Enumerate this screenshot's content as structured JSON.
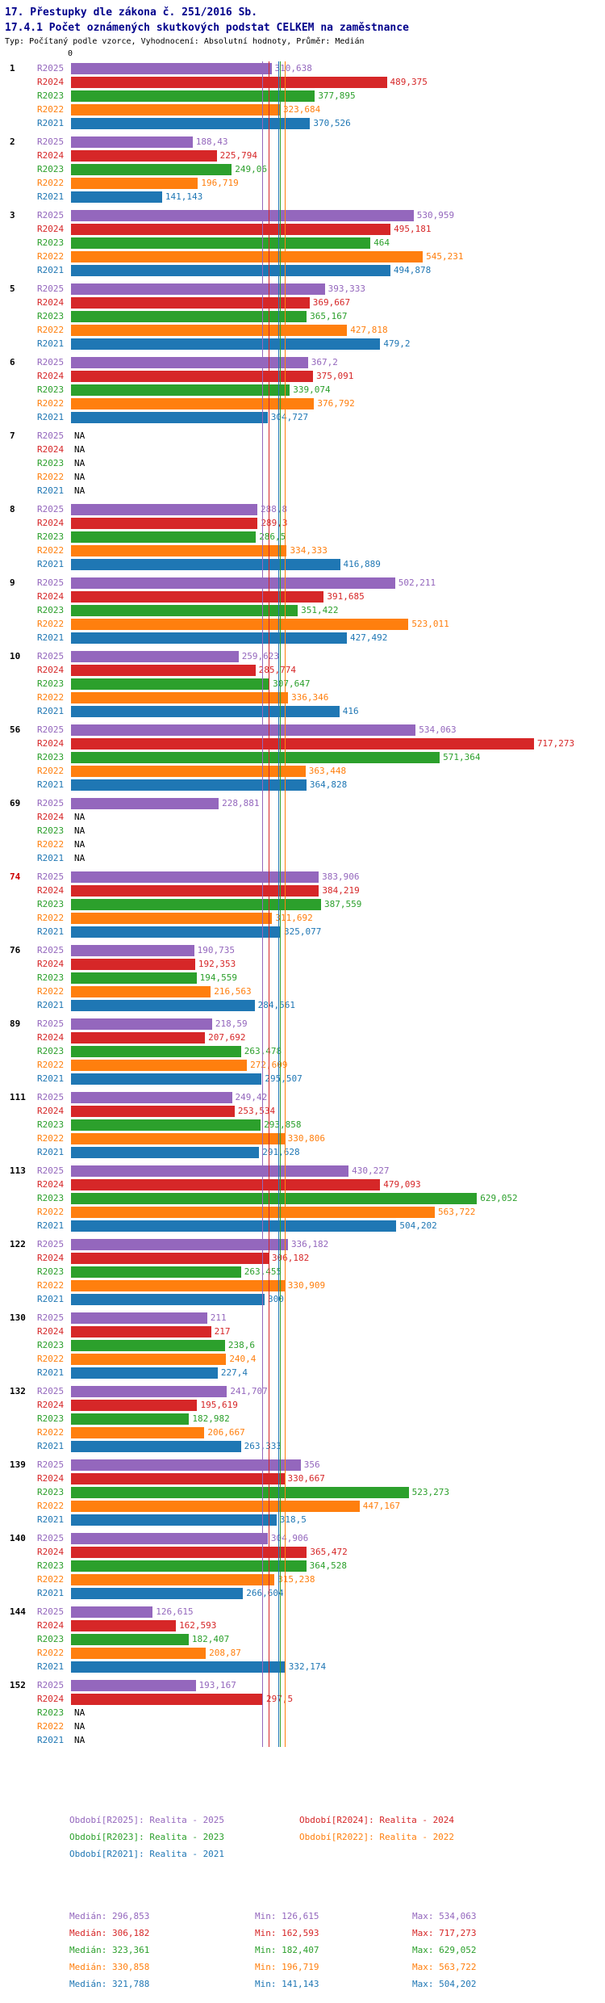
{
  "header": {
    "title_line1": "17. Přestupky dle zákona č. 251/2016 Sb.",
    "title_line2": "17.4.1 Počet oznámených skutkových podstat CELKEM na zaměstnance",
    "meta": "Typ: Počítaný podle vzorce, Vyhodnocení: Absolutní hodnoty, Průměr: Medián"
  },
  "chart_data": {
    "type": "bar",
    "orientation": "horizontal",
    "x_ticks": [
      "0"
    ],
    "gridlines": false,
    "highlight_color": "#cc0000",
    "na_label": "NA",
    "series": [
      {
        "key": "R2025",
        "color": "#9467bd",
        "median": 296.853,
        "legend_label": "Období[R2025]: Realita - 2025",
        "stats": {
          "median": "Medián: 296,853",
          "min": "Min: 126,615",
          "max": "Max: 534,063"
        }
      },
      {
        "key": "R2024",
        "color": "#d62728",
        "median": 306.182,
        "legend_label": "Období[R2024]: Realita - 2024",
        "stats": {
          "median": "Medián: 306,182",
          "min": "Min: 162,593",
          "max": "Max: 717,273"
        }
      },
      {
        "key": "R2023",
        "color": "#2ca02c",
        "median": 323.361,
        "legend_label": "Období[R2023]: Realita - 2023",
        "stats": {
          "median": "Medián: 323,361",
          "min": "Min: 182,407",
          "max": "Max: 629,052"
        }
      },
      {
        "key": "R2022",
        "color": "#ff7f0e",
        "median": 330.858,
        "legend_label": "Období[R2022]: Realita - 2022",
        "stats": {
          "median": "Medián: 330,858",
          "min": "Min: 196,719",
          "max": "Max: 563,722"
        }
      },
      {
        "key": "R2021",
        "color": "#1f77b4",
        "median": 321.788,
        "legend_label": "Období[R2021]: Realita - 2021",
        "stats": {
          "median": "Medián: 321,788",
          "min": "Min: 141,143",
          "max": "Max: 504,202"
        }
      }
    ],
    "groups": [
      {
        "label": "1",
        "highlight": false,
        "values": [
          310.638,
          489.375,
          377.895,
          323.684,
          370.526
        ],
        "value_labels": [
          "310,638",
          "489,375",
          "377,895",
          "323,684",
          "370,526"
        ]
      },
      {
        "label": "2",
        "highlight": false,
        "values": [
          188.43,
          225.794,
          249.06,
          196.719,
          141.143
        ],
        "value_labels": [
          "188,43",
          "225,794",
          "249,06",
          "196,719",
          "141,143"
        ]
      },
      {
        "label": "3",
        "highlight": false,
        "values": [
          530.959,
          495.181,
          464,
          545.231,
          494.878
        ],
        "value_labels": [
          "530,959",
          "495,181",
          "464",
          "545,231",
          "494,878"
        ]
      },
      {
        "label": "5",
        "highlight": false,
        "values": [
          393.333,
          369.667,
          365.167,
          427.818,
          479.2
        ],
        "value_labels": [
          "393,333",
          "369,667",
          "365,167",
          "427,818",
          "479,2"
        ]
      },
      {
        "label": "6",
        "highlight": false,
        "values": [
          367.2,
          375.091,
          339.074,
          376.792,
          304.727
        ],
        "value_labels": [
          "367,2",
          "375,091",
          "339,074",
          "376,792",
          "304,727"
        ]
      },
      {
        "label": "7",
        "highlight": false,
        "values": [
          null,
          null,
          null,
          null,
          null
        ],
        "value_labels": [
          "NA",
          "NA",
          "NA",
          "NA",
          "NA"
        ]
      },
      {
        "label": "8",
        "highlight": false,
        "values": [
          288.8,
          289.3,
          286.5,
          334.333,
          416.889
        ],
        "value_labels": [
          "288,8",
          "289,3",
          "286,5",
          "334,333",
          "416,889"
        ]
      },
      {
        "label": "9",
        "highlight": false,
        "values": [
          502.211,
          391.685,
          351.422,
          523.011,
          427.492
        ],
        "value_labels": [
          "502,211",
          "391,685",
          "351,422",
          "523,011",
          "427,492"
        ]
      },
      {
        "label": "10",
        "highlight": false,
        "values": [
          259.623,
          285.774,
          307.647,
          336.346,
          416
        ],
        "value_labels": [
          "259,623",
          "285,774",
          "307,647",
          "336,346",
          "416"
        ]
      },
      {
        "label": "56",
        "highlight": false,
        "values": [
          534.063,
          717.273,
          571.364,
          363.448,
          364.828
        ],
        "value_labels": [
          "534,063",
          "717,273",
          "571,364",
          "363,448",
          "364,828"
        ]
      },
      {
        "label": "69",
        "highlight": false,
        "values": [
          228.881,
          null,
          null,
          null,
          null
        ],
        "value_labels": [
          "228,881",
          "NA",
          "NA",
          "NA",
          "NA"
        ]
      },
      {
        "label": "74",
        "highlight": true,
        "values": [
          383.906,
          384.219,
          387.559,
          311.692,
          325.077
        ],
        "value_labels": [
          "383,906",
          "384,219",
          "387,559",
          "311,692",
          "325,077"
        ]
      },
      {
        "label": "76",
        "highlight": false,
        "values": [
          190.735,
          192.353,
          194.559,
          216.563,
          284.561
        ],
        "value_labels": [
          "190,735",
          "192,353",
          "194,559",
          "216,563",
          "284,561"
        ]
      },
      {
        "label": "89",
        "highlight": false,
        "values": [
          218.59,
          207.692,
          263.478,
          272.609,
          295.507
        ],
        "value_labels": [
          "218,59",
          "207,692",
          "263,478",
          "272,609",
          "295,507"
        ]
      },
      {
        "label": "111",
        "highlight": false,
        "values": [
          249.42,
          253.534,
          293.858,
          330.806,
          291.628
        ],
        "value_labels": [
          "249,42",
          "253,534",
          "293,858",
          "330,806",
          "291,628"
        ]
      },
      {
        "label": "113",
        "highlight": false,
        "values": [
          430.227,
          479.093,
          629.052,
          563.722,
          504.202
        ],
        "value_labels": [
          "430,227",
          "479,093",
          "629,052",
          "563,722",
          "504,202"
        ]
      },
      {
        "label": "122",
        "highlight": false,
        "values": [
          336.182,
          306.182,
          263.455,
          330.909,
          300
        ],
        "value_labels": [
          "336,182",
          "306,182",
          "263,455",
          "330,909",
          "300"
        ]
      },
      {
        "label": "130",
        "highlight": false,
        "values": [
          211,
          217,
          238.6,
          240.4,
          227.4
        ],
        "value_labels": [
          "211",
          "217",
          "238,6",
          "240,4",
          "227,4"
        ]
      },
      {
        "label": "132",
        "highlight": false,
        "values": [
          241.707,
          195.619,
          182.982,
          206.667,
          263.333
        ],
        "value_labels": [
          "241,707",
          "195,619",
          "182,982",
          "206,667",
          "263,333"
        ]
      },
      {
        "label": "139",
        "highlight": false,
        "values": [
          356,
          330.667,
          523.273,
          447.167,
          318.5
        ],
        "value_labels": [
          "356",
          "330,667",
          "523,273",
          "447,167",
          "318,5"
        ]
      },
      {
        "label": "140",
        "highlight": false,
        "values": [
          304.906,
          365.472,
          364.528,
          315.238,
          266.604
        ],
        "value_labels": [
          "304,906",
          "365,472",
          "364,528",
          "315,238",
          "266,604"
        ]
      },
      {
        "label": "144",
        "highlight": false,
        "values": [
          126.615,
          162.593,
          182.407,
          208.87,
          332.174
        ],
        "value_labels": [
          "126,615",
          "162,593",
          "182,407",
          "208,87",
          "332,174"
        ]
      },
      {
        "label": "152",
        "highlight": false,
        "values": [
          193.167,
          297.5,
          null,
          null,
          null
        ],
        "value_labels": [
          "193,167",
          "297,5",
          "NA",
          "NA",
          "NA"
        ]
      }
    ]
  }
}
